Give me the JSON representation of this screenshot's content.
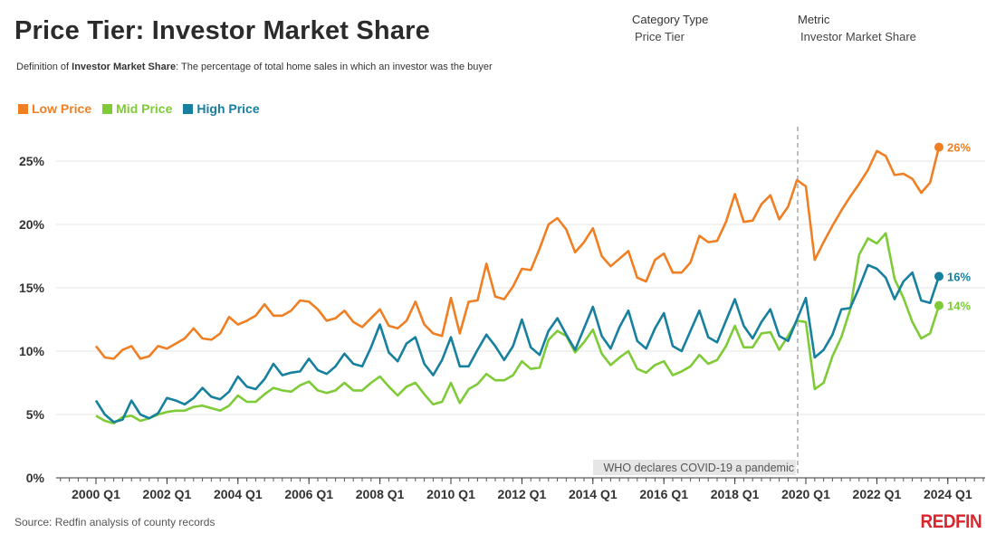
{
  "header": {
    "title": "Price Tier: Investor Market Share",
    "definition_prefix": "Definition of ",
    "definition_term": "Investor Market Share",
    "definition_text": ": The percentage of total home sales in which an investor was the buyer"
  },
  "filters": {
    "category_label": "Category Type",
    "category_value": "Price Tier",
    "metric_label": "Metric",
    "metric_value": "Investor Market Share"
  },
  "colors": {
    "low": "#f07f23",
    "mid": "#7ecb37",
    "high": "#16809e",
    "grid": "#e6e6e6"
  },
  "footer": {
    "source": "Source: Redfin analysis of county records",
    "logo": "REDFIN"
  },
  "chart_data": {
    "type": "line",
    "x_start": "2000 Q1",
    "x_end": "2023 Q4",
    "x_ticks": [
      "2000 Q1",
      "2002 Q1",
      "2004 Q1",
      "2006 Q1",
      "2008 Q1",
      "2010 Q1",
      "2012 Q1",
      "2014 Q1",
      "2016 Q1",
      "2018 Q1",
      "2020 Q1",
      "2022 Q1",
      "2024 Q1"
    ],
    "y_ticks": [
      "0%",
      "5%",
      "10%",
      "15%",
      "20%",
      "25%"
    ],
    "ylim": [
      0,
      28
    ],
    "grid": true,
    "legend_position": "top-left",
    "annotation": {
      "label": "WHO declares COVID-19 a pandemic",
      "x": "2020 Q1"
    },
    "series": [
      {
        "name": "Low Price",
        "color_key": "low",
        "end_label": "26%",
        "values": [
          10.4,
          9.5,
          9.4,
          10.1,
          10.4,
          9.4,
          9.6,
          10.4,
          10.2,
          10.6,
          11.0,
          11.8,
          11.0,
          10.9,
          11.4,
          12.7,
          12.1,
          12.4,
          12.8,
          13.7,
          12.8,
          12.8,
          13.2,
          14.0,
          13.9,
          13.3,
          12.4,
          12.6,
          13.2,
          12.3,
          11.9,
          12.6,
          13.3,
          12.0,
          11.8,
          12.4,
          13.9,
          12.1,
          11.4,
          11.2,
          14.2,
          11.4,
          13.9,
          14.0,
          16.9,
          14.3,
          14.1,
          15.1,
          16.5,
          16.4,
          18.1,
          20.0,
          20.5,
          19.6,
          17.8,
          18.6,
          19.7,
          17.5,
          16.7,
          17.3,
          17.9,
          15.8,
          15.5,
          17.2,
          17.7,
          16.2,
          16.2,
          17.0,
          19.1,
          18.6,
          18.7,
          20.2,
          22.4,
          20.2,
          20.3,
          21.6,
          22.3,
          20.4,
          21.4,
          23.5,
          23.0,
          17.2,
          18.6,
          19.9,
          21.1,
          22.2,
          23.2,
          24.3,
          25.8,
          25.4,
          23.9,
          24.0,
          23.6,
          22.5,
          23.3,
          26.1
        ]
      },
      {
        "name": "Mid Price",
        "color_key": "mid",
        "end_label": "14%",
        "values": [
          4.9,
          4.5,
          4.3,
          4.8,
          4.9,
          4.5,
          4.7,
          5.0,
          5.2,
          5.3,
          5.3,
          5.6,
          5.7,
          5.5,
          5.3,
          5.7,
          6.5,
          6.0,
          6.0,
          6.6,
          7.1,
          6.9,
          6.8,
          7.3,
          7.6,
          6.9,
          6.7,
          6.9,
          7.5,
          6.9,
          6.9,
          7.5,
          8.0,
          7.2,
          6.5,
          7.2,
          7.5,
          6.6,
          5.8,
          6.0,
          7.5,
          5.9,
          7.0,
          7.4,
          8.2,
          7.7,
          7.7,
          8.1,
          9.2,
          8.6,
          8.7,
          10.9,
          11.6,
          11.2,
          9.9,
          10.7,
          11.7,
          9.8,
          8.9,
          9.5,
          10.0,
          8.6,
          8.3,
          8.9,
          9.2,
          8.1,
          8.4,
          8.8,
          9.7,
          9.0,
          9.3,
          10.4,
          12.0,
          10.3,
          10.3,
          11.4,
          11.5,
          10.1,
          11.2,
          12.4,
          12.3,
          7.0,
          7.5,
          9.6,
          11.1,
          13.3,
          17.6,
          18.9,
          18.5,
          19.3,
          15.7,
          14.2,
          12.3,
          11.0,
          11.4,
          13.6
        ]
      },
      {
        "name": "High Price",
        "color_key": "high",
        "end_label": "16%",
        "values": [
          6.1,
          5.0,
          4.4,
          4.6,
          6.1,
          5.0,
          4.7,
          5.1,
          6.3,
          6.1,
          5.8,
          6.3,
          7.1,
          6.4,
          6.2,
          6.8,
          8.0,
          7.2,
          7.0,
          7.8,
          9.0,
          8.1,
          8.3,
          8.4,
          9.4,
          8.5,
          8.2,
          8.8,
          9.8,
          9.0,
          8.8,
          10.3,
          12.1,
          9.9,
          9.2,
          10.6,
          11.1,
          9.0,
          8.1,
          9.3,
          11.1,
          8.8,
          8.8,
          10.1,
          11.3,
          10.4,
          9.3,
          10.4,
          12.5,
          10.3,
          9.7,
          11.6,
          12.6,
          11.3,
          10.1,
          11.8,
          13.5,
          11.2,
          10.2,
          11.9,
          13.2,
          10.8,
          10.2,
          11.8,
          13.0,
          10.4,
          10.0,
          11.6,
          13.2,
          11.1,
          10.7,
          12.4,
          14.1,
          12.0,
          11.0,
          12.3,
          13.3,
          11.2,
          10.8,
          12.5,
          14.2,
          9.5,
          10.1,
          11.3,
          13.3,
          13.4,
          15.0,
          16.8,
          16.5,
          15.8,
          14.1,
          15.5,
          16.2,
          14.0,
          13.8,
          15.9
        ]
      }
    ]
  }
}
